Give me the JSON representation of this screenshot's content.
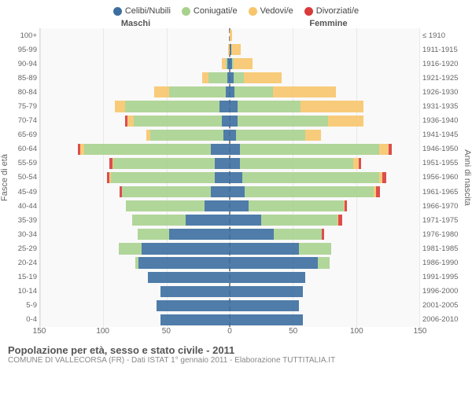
{
  "legend": [
    {
      "label": "Celibi/Nubili",
      "color": "#3c6ea0"
    },
    {
      "label": "Coniugati/e",
      "color": "#a9d18e"
    },
    {
      "label": "Vedovi/e",
      "color": "#f7c56b"
    },
    {
      "label": "Divorziati/e",
      "color": "#d93a3a"
    }
  ],
  "header_male": "Maschi",
  "header_female": "Femmine",
  "ylabel_left": "Fasce di età",
  "ylabel_right": "Anni di nascita",
  "title": "Popolazione per età, sesso e stato civile - 2011",
  "subtitle": "COMUNE DI VALLECORSA (FR) - Dati ISTAT 1° gennaio 2011 - Elaborazione TUTTITALIA.IT",
  "colors": {
    "single": "#3c6ea0",
    "married": "#a9d18e",
    "widowed": "#f7c56b",
    "divorced": "#d93a3a",
    "bg": "#f9f9f9",
    "grid": "#e8e8e8",
    "center": "#888888"
  },
  "xmax": 150,
  "xticks": [
    0,
    50,
    100,
    150
  ],
  "age_labels": [
    "100+",
    "95-99",
    "90-94",
    "85-89",
    "80-84",
    "75-79",
    "70-74",
    "65-69",
    "60-64",
    "55-59",
    "50-54",
    "45-49",
    "40-44",
    "35-39",
    "30-34",
    "25-29",
    "20-24",
    "15-19",
    "10-14",
    "5-9",
    "0-4"
  ],
  "year_labels": [
    "≤ 1910",
    "1911-1915",
    "1916-1920",
    "1921-1925",
    "1926-1930",
    "1931-1935",
    "1936-1940",
    "1941-1945",
    "1946-1950",
    "1951-1955",
    "1956-1960",
    "1961-1965",
    "1966-1970",
    "1971-1975",
    "1976-1980",
    "1981-1985",
    "1986-1990",
    "1991-1995",
    "1996-2000",
    "2001-2005",
    "2006-2010"
  ],
  "data": [
    {
      "m": [
        0,
        0,
        0,
        0
      ],
      "f": [
        0,
        0,
        2,
        0
      ]
    },
    {
      "m": [
        0,
        0,
        1,
        0
      ],
      "f": [
        1,
        0,
        8,
        0
      ]
    },
    {
      "m": [
        2,
        1,
        3,
        0
      ],
      "f": [
        2,
        1,
        15,
        0
      ]
    },
    {
      "m": [
        2,
        15,
        5,
        0
      ],
      "f": [
        3,
        8,
        30,
        0
      ]
    },
    {
      "m": [
        3,
        45,
        12,
        0
      ],
      "f": [
        4,
        30,
        50,
        0
      ]
    },
    {
      "m": [
        8,
        75,
        8,
        0
      ],
      "f": [
        6,
        50,
        50,
        0
      ]
    },
    {
      "m": [
        6,
        70,
        5,
        2
      ],
      "f": [
        6,
        72,
        28,
        0
      ]
    },
    {
      "m": [
        5,
        58,
        3,
        0
      ],
      "f": [
        5,
        55,
        12,
        0
      ]
    },
    {
      "m": [
        15,
        100,
        3,
        2
      ],
      "f": [
        8,
        110,
        8,
        2
      ]
    },
    {
      "m": [
        12,
        80,
        1,
        2
      ],
      "f": [
        8,
        90,
        4,
        2
      ]
    },
    {
      "m": [
        12,
        82,
        1,
        2
      ],
      "f": [
        10,
        108,
        3,
        3
      ]
    },
    {
      "m": [
        15,
        70,
        0,
        2
      ],
      "f": [
        12,
        102,
        2,
        3
      ]
    },
    {
      "m": [
        20,
        62,
        0,
        0
      ],
      "f": [
        15,
        75,
        1,
        2
      ]
    },
    {
      "m": [
        35,
        42,
        0,
        0
      ],
      "f": [
        25,
        60,
        1,
        3
      ]
    },
    {
      "m": [
        48,
        25,
        0,
        0
      ],
      "f": [
        35,
        38,
        0,
        2
      ]
    },
    {
      "m": [
        70,
        18,
        0,
        0
      ],
      "f": [
        55,
        25,
        0,
        0
      ]
    },
    {
      "m": [
        72,
        3,
        0,
        0
      ],
      "f": [
        70,
        9,
        0,
        0
      ]
    },
    {
      "m": [
        65,
        0,
        0,
        0
      ],
      "f": [
        60,
        0,
        0,
        0
      ]
    },
    {
      "m": [
        55,
        0,
        0,
        0
      ],
      "f": [
        58,
        0,
        0,
        0
      ]
    },
    {
      "m": [
        58,
        0,
        0,
        0
      ],
      "f": [
        55,
        0,
        0,
        0
      ]
    },
    {
      "m": [
        55,
        0,
        0,
        0
      ],
      "f": [
        58,
        0,
        0,
        0
      ]
    }
  ]
}
